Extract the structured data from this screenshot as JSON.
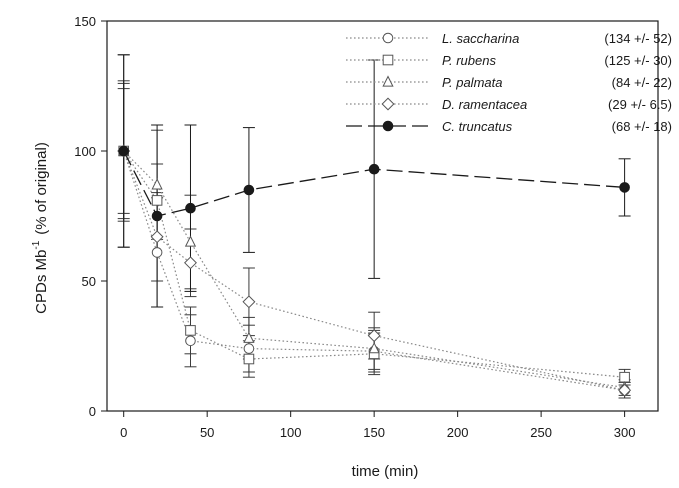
{
  "chart_data": {
    "type": "line",
    "xlabel": "time (min)",
    "ylabel": "CPDs Mb",
    "ylabel_superscript": "-1",
    "ylabel_suffix": "(% of original)",
    "xlim": [
      -10,
      320
    ],
    "ylim": [
      0,
      150
    ],
    "xticks": [
      0,
      50,
      100,
      150,
      200,
      250,
      300
    ],
    "yticks": [
      0,
      50,
      100,
      150
    ],
    "grid": false,
    "legend_position": "top-right",
    "series": [
      {
        "name": "L. saccharina",
        "value_label": "(134 +/- 52)",
        "marker": "circle-open",
        "line": "dotted",
        "color": "#8a8a8a",
        "x": [
          0,
          20,
          40,
          75,
          150,
          300
        ],
        "y": [
          100,
          61,
          27,
          24,
          23,
          8
        ],
        "err": [
          37,
          21,
          10,
          9,
          8,
          3
        ]
      },
      {
        "name": "P. rubens",
        "value_label": "(125 +/- 30)",
        "marker": "square-open",
        "line": "dotted",
        "color": "#8a8a8a",
        "x": [
          0,
          20,
          40,
          75,
          150,
          300
        ],
        "y": [
          100,
          81,
          31,
          20,
          22,
          13
        ],
        "err": [
          26,
          14,
          9,
          7,
          8,
          3
        ]
      },
      {
        "name": "P. palmata",
        "value_label": "(84 +/- 22)",
        "marker": "triangle-open",
        "line": "dotted",
        "color": "#8a8a8a",
        "x": [
          0,
          20,
          40,
          75,
          150,
          300
        ],
        "y": [
          100,
          87,
          65,
          28,
          24,
          9
        ],
        "err": [
          27,
          21,
          18,
          8,
          8,
          3
        ]
      },
      {
        "name": "D. ramentacea",
        "value_label": "(29 +/- 6.5)",
        "marker": "diamond-open",
        "line": "dotted",
        "color": "#8a8a8a",
        "x": [
          0,
          20,
          40,
          75,
          150,
          300
        ],
        "y": [
          100,
          67,
          57,
          42,
          29,
          8
        ],
        "err": [
          24,
          17,
          13,
          13,
          9,
          3
        ]
      },
      {
        "name": "C. truncatus",
        "value_label": "(68 +/- 18)",
        "marker": "circle-filled",
        "line": "dashed",
        "color": "#1a1a1a",
        "x": [
          0,
          20,
          40,
          75,
          150,
          300
        ],
        "y": [
          100,
          75,
          78,
          85,
          93,
          86
        ],
        "err": [
          37,
          35,
          32,
          24,
          42,
          11
        ]
      }
    ]
  }
}
